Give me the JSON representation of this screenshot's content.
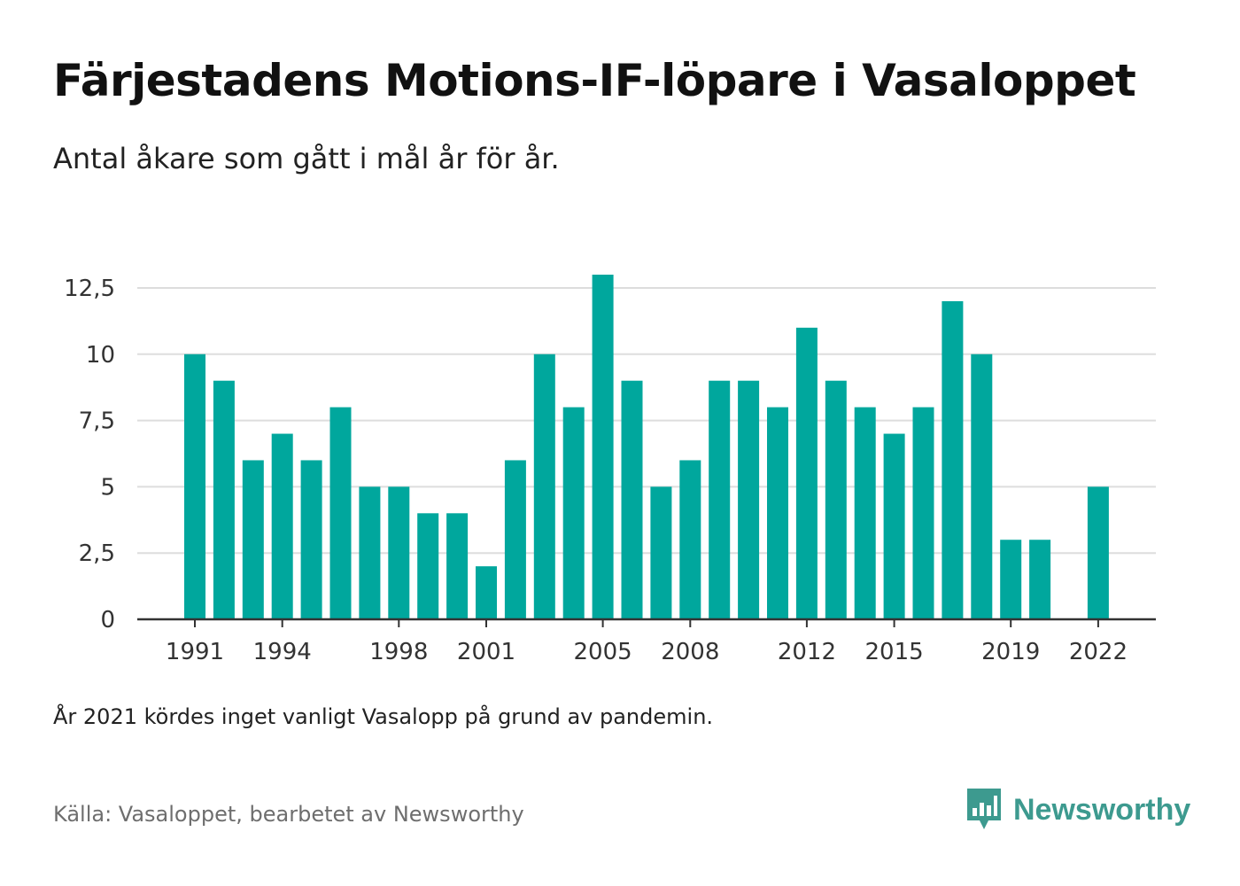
{
  "title": "Färjestadens Motions-IF-löpare i Vasaloppet",
  "subtitle": "Antal åkare som gått i mål år för år.",
  "note": "År 2021 kördes inget vanligt Vasalopp på grund av pandemin.",
  "source": "Källa: Vasaloppet, bearbetet av Newsworthy",
  "brand": {
    "name": "Newsworthy",
    "icon": "newsworthy-logo-icon",
    "color": "#3d9a8f"
  },
  "colors": {
    "bar": "#00a79d",
    "grid": "#dddddd",
    "axis": "#333333",
    "tick_text": "#333333"
  },
  "chart_data": {
    "type": "bar",
    "title": "Färjestadens Motions-IF-löpare i Vasaloppet",
    "subtitle": "Antal åkare som gått i mål år för år.",
    "xlabel": "",
    "ylabel": "",
    "categories": [
      1991,
      1992,
      1993,
      1994,
      1995,
      1996,
      1997,
      1998,
      1999,
      2000,
      2001,
      2002,
      2003,
      2004,
      2005,
      2006,
      2007,
      2008,
      2009,
      2010,
      2011,
      2012,
      2013,
      2014,
      2015,
      2016,
      2017,
      2018,
      2019,
      2020,
      2021,
      2022
    ],
    "values": [
      10,
      9,
      6,
      7,
      6,
      8,
      5,
      5,
      4,
      4,
      2,
      6,
      10,
      8,
      13,
      9,
      5,
      6,
      9,
      9,
      8,
      11,
      9,
      8,
      7,
      8,
      12,
      10,
      3,
      3,
      null,
      5
    ],
    "ylim": [
      0,
      13
    ],
    "yticks": [
      0,
      2.5,
      5,
      7.5,
      10,
      12.5
    ],
    "ytick_labels": [
      "0",
      "2,5",
      "5",
      "7,5",
      "10",
      "12,5"
    ],
    "xtick_labels": [
      "1991",
      "1994",
      "1998",
      "2001",
      "2005",
      "2008",
      "2012",
      "2015",
      "2019",
      "2022"
    ],
    "grid": true,
    "legend": "none"
  }
}
